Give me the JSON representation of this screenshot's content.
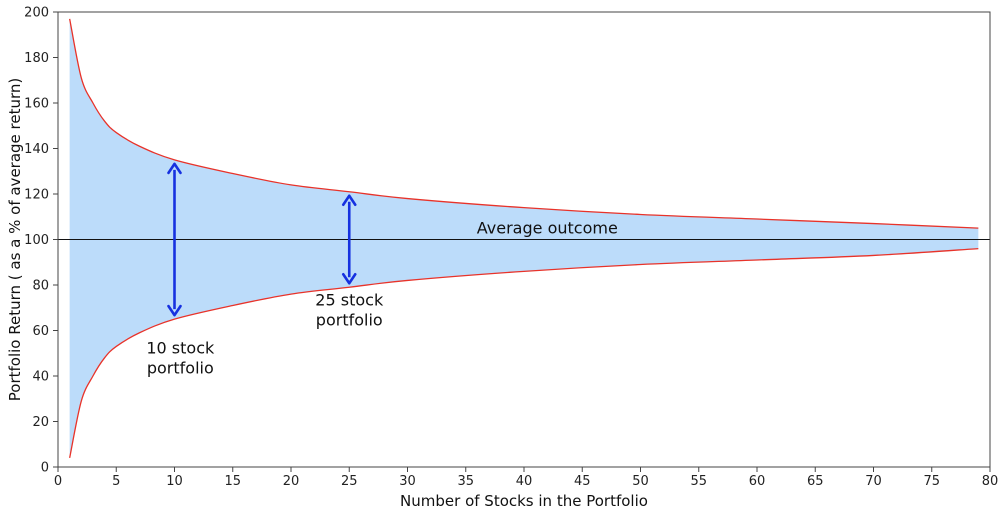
{
  "chart_data": {
    "type": "area",
    "title": "",
    "xlabel": "Number of Stocks in the Portfolio",
    "ylabel": "Portfolio Return ( as a % of average return)",
    "xlim": [
      0,
      80
    ],
    "ylim": [
      0,
      200
    ],
    "x_ticks": [
      0,
      5,
      10,
      15,
      20,
      25,
      30,
      35,
      40,
      45,
      50,
      55,
      60,
      65,
      70,
      75,
      80
    ],
    "y_ticks": [
      0,
      20,
      40,
      60,
      80,
      100,
      120,
      140,
      160,
      180,
      200
    ],
    "grid": false,
    "average_line": {
      "y": 100,
      "label": "Average outcome"
    },
    "band": {
      "x": [
        1,
        2,
        3,
        4,
        5,
        7,
        10,
        15,
        20,
        25,
        30,
        40,
        50,
        60,
        70,
        79
      ],
      "upper": [
        197,
        171,
        160,
        152,
        147,
        141,
        135,
        129,
        124,
        121,
        118,
        114,
        111,
        109,
        107,
        105
      ],
      "lower": [
        4,
        29,
        40,
        48,
        53,
        59,
        65,
        71,
        76,
        79,
        82,
        86,
        89,
        91,
        93,
        96
      ],
      "fill_color": "#bcdcfa",
      "edge_color": "#e8332a"
    },
    "arrows": [
      {
        "x": 10,
        "y_from": 65,
        "y_to": 135,
        "color": "#1631e0"
      },
      {
        "x": 25,
        "y_from": 79,
        "y_to": 121,
        "color": "#1631e0"
      }
    ],
    "annotations": [
      {
        "lines": [
          "10 stock",
          "portfolio"
        ],
        "x": 10.5,
        "y": 50
      },
      {
        "lines": [
          "25 stock",
          "portfolio"
        ],
        "x": 25,
        "y": 71
      }
    ]
  }
}
